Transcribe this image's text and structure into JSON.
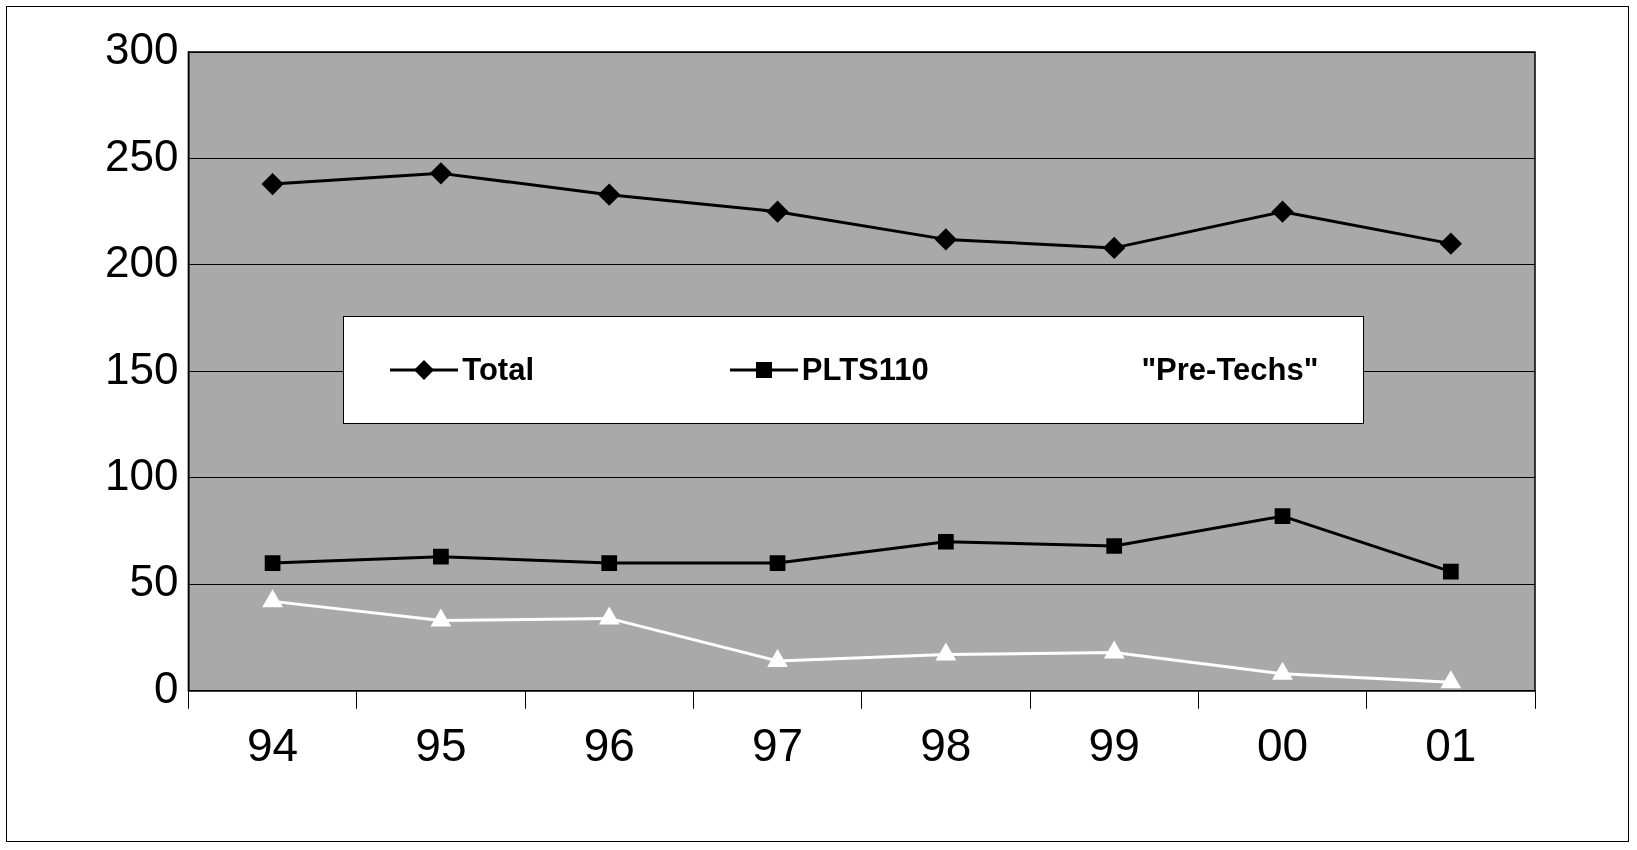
{
  "chart_data": {
    "type": "line",
    "categories": [
      "94",
      "95",
      "96",
      "97",
      "98",
      "99",
      "00",
      "01"
    ],
    "series": [
      {
        "name": "Total",
        "color": "#000000",
        "marker": "diamond",
        "values": [
          238,
          243,
          233,
          225,
          212,
          208,
          225,
          210
        ]
      },
      {
        "name": "PLTS110",
        "color": "#000000",
        "marker": "square",
        "values": [
          60,
          63,
          60,
          60,
          70,
          68,
          82,
          56
        ]
      },
      {
        "name": "\"Pre-Techs\"",
        "color": "#ffffff",
        "marker": "triangle",
        "values": [
          42,
          33,
          34,
          14,
          17,
          18,
          8,
          4
        ]
      }
    ],
    "ylim": [
      0,
      300
    ],
    "yticks": [
      0,
      50,
      100,
      150,
      200,
      250,
      300
    ],
    "grid": "y",
    "legend": "center",
    "line_style": "solid"
  }
}
